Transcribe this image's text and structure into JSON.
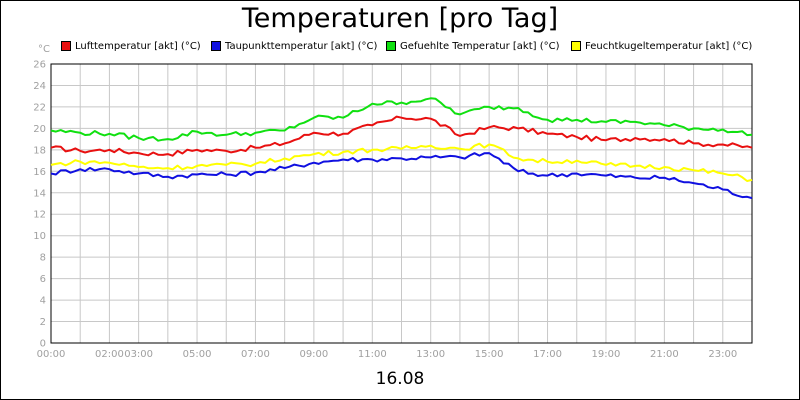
{
  "chart_data": {
    "type": "line",
    "title": "Temperaturen [pro Tag]",
    "ylabel": "°C",
    "xlabel": "16.08",
    "ylim": [
      0,
      26
    ],
    "yticks": [
      0,
      2,
      4,
      6,
      8,
      10,
      12,
      14,
      16,
      18,
      20,
      22,
      24,
      26
    ],
    "xlim": [
      0,
      24
    ],
    "xticks": [
      {
        "v": 0,
        "label": "00:00"
      },
      {
        "v": 2,
        "label": "02:00"
      },
      {
        "v": 3,
        "label": "03:00"
      },
      {
        "v": 5,
        "label": "05:00"
      },
      {
        "v": 7,
        "label": "07:00"
      },
      {
        "v": 9,
        "label": "09:00"
      },
      {
        "v": 11,
        "label": "11:00"
      },
      {
        "v": 13,
        "label": "13:00"
      },
      {
        "v": 15,
        "label": "15:00"
      },
      {
        "v": 17,
        "label": "17:00"
      },
      {
        "v": 19,
        "label": "19:00"
      },
      {
        "v": 21,
        "label": "21:00"
      },
      {
        "v": 23,
        "label": "23:00"
      }
    ],
    "grid": true,
    "x": [
      0,
      1,
      2,
      3,
      4,
      5,
      6,
      7,
      8,
      9,
      10,
      11,
      12,
      13,
      14,
      15,
      16,
      17,
      18,
      19,
      20,
      21,
      22,
      23,
      24
    ],
    "series": [
      {
        "name": "Lufttemperatur [akt] (°C)",
        "color": "#e81010",
        "values": [
          18.2,
          17.9,
          18.0,
          17.7,
          17.6,
          18.0,
          17.9,
          18.2,
          18.6,
          19.6,
          19.5,
          20.3,
          21.0,
          20.9,
          19.3,
          20.1,
          20.0,
          19.5,
          19.2,
          18.9,
          19.1,
          19.0,
          18.6,
          18.5,
          18.2
        ]
      },
      {
        "name": "Taupunkttemperatur [akt] (°C)",
        "color": "#1010e0",
        "values": [
          15.8,
          16.2,
          16.2,
          15.8,
          15.5,
          15.7,
          15.7,
          15.9,
          16.3,
          16.8,
          17.1,
          17.1,
          17.2,
          17.3,
          17.3,
          17.7,
          16.0,
          15.6,
          15.8,
          15.6,
          15.4,
          15.4,
          14.9,
          14.3,
          13.5
        ]
      },
      {
        "name": "Gefuehlte Temperatur [akt] (°C)",
        "color": "#10e010",
        "values": [
          19.8,
          19.6,
          19.5,
          19.1,
          19.0,
          19.7,
          19.4,
          19.6,
          19.8,
          21.0,
          21.0,
          22.3,
          22.4,
          22.8,
          21.3,
          22.0,
          21.9,
          20.8,
          20.8,
          20.6,
          20.6,
          20.3,
          20.0,
          19.9,
          19.4
        ]
      },
      {
        "name": "Feuchtkugeltemperatur [akt] (°C)",
        "color": "#ffff00",
        "values": [
          16.6,
          16.9,
          16.8,
          16.4,
          16.3,
          16.5,
          16.6,
          16.7,
          17.2,
          17.6,
          17.8,
          18.0,
          18.1,
          18.4,
          18.1,
          18.5,
          17.2,
          16.9,
          17.0,
          16.6,
          16.5,
          16.4,
          16.1,
          15.8,
          15.2
        ]
      }
    ]
  }
}
